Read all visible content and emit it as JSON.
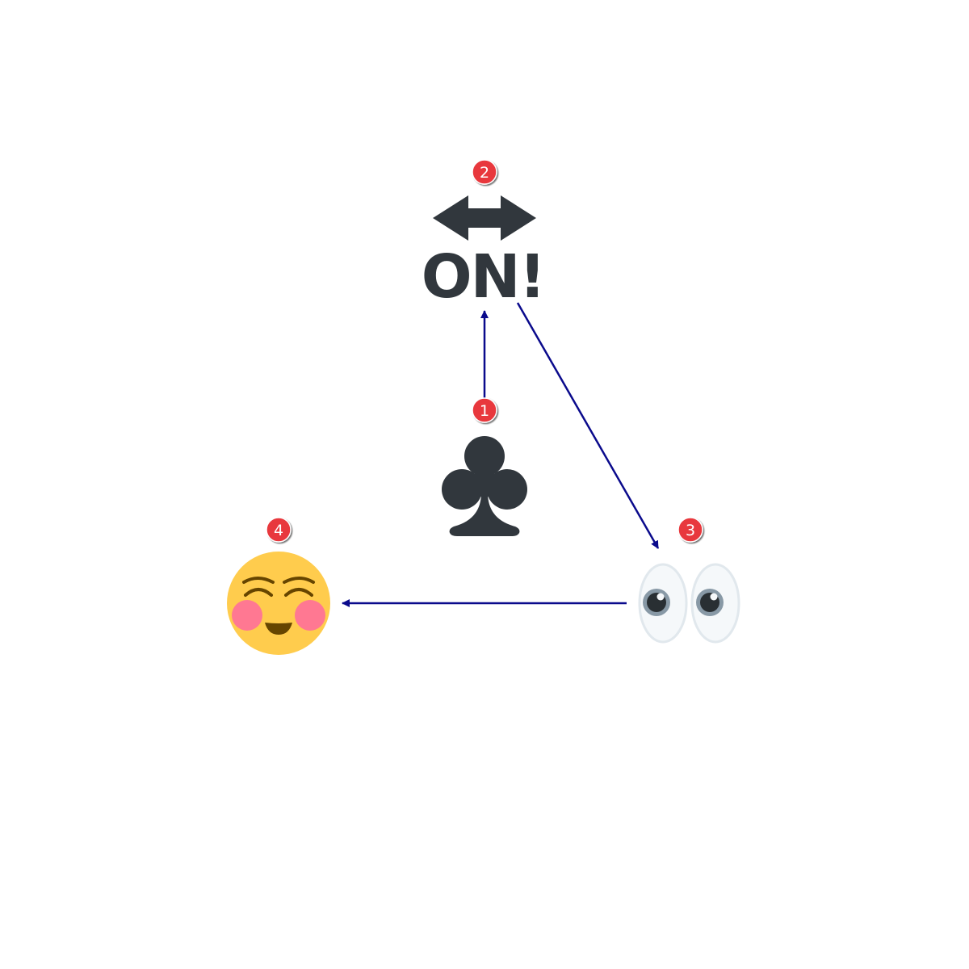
{
  "diagram": {
    "nodes": [
      {
        "id": "1",
        "badge": "1",
        "icon": "club-suit-icon"
      },
      {
        "id": "2",
        "badge": "2",
        "icon": "on-arrow-icon",
        "text": "ON!"
      },
      {
        "id": "3",
        "badge": "3",
        "icon": "eyes-icon"
      },
      {
        "id": "4",
        "badge": "4",
        "icon": "smiling-face-icon"
      }
    ],
    "edges": [
      {
        "from": "1",
        "to": "2"
      },
      {
        "from": "2",
        "to": "3"
      },
      {
        "from": "3",
        "to": "4"
      }
    ],
    "colors": {
      "edge": "#0a0a8c",
      "badge_fill": "#e8383d",
      "badge_text": "#ffffff",
      "icon_dark": "#31373d",
      "face_yellow": "#ffcc4d",
      "face_blush": "#ff7892",
      "face_features": "#664500",
      "eye_white": "#f5f8fa",
      "eye_outline": "#e1e8ed",
      "iris": "#8899a6",
      "pupil": "#292f33"
    }
  }
}
